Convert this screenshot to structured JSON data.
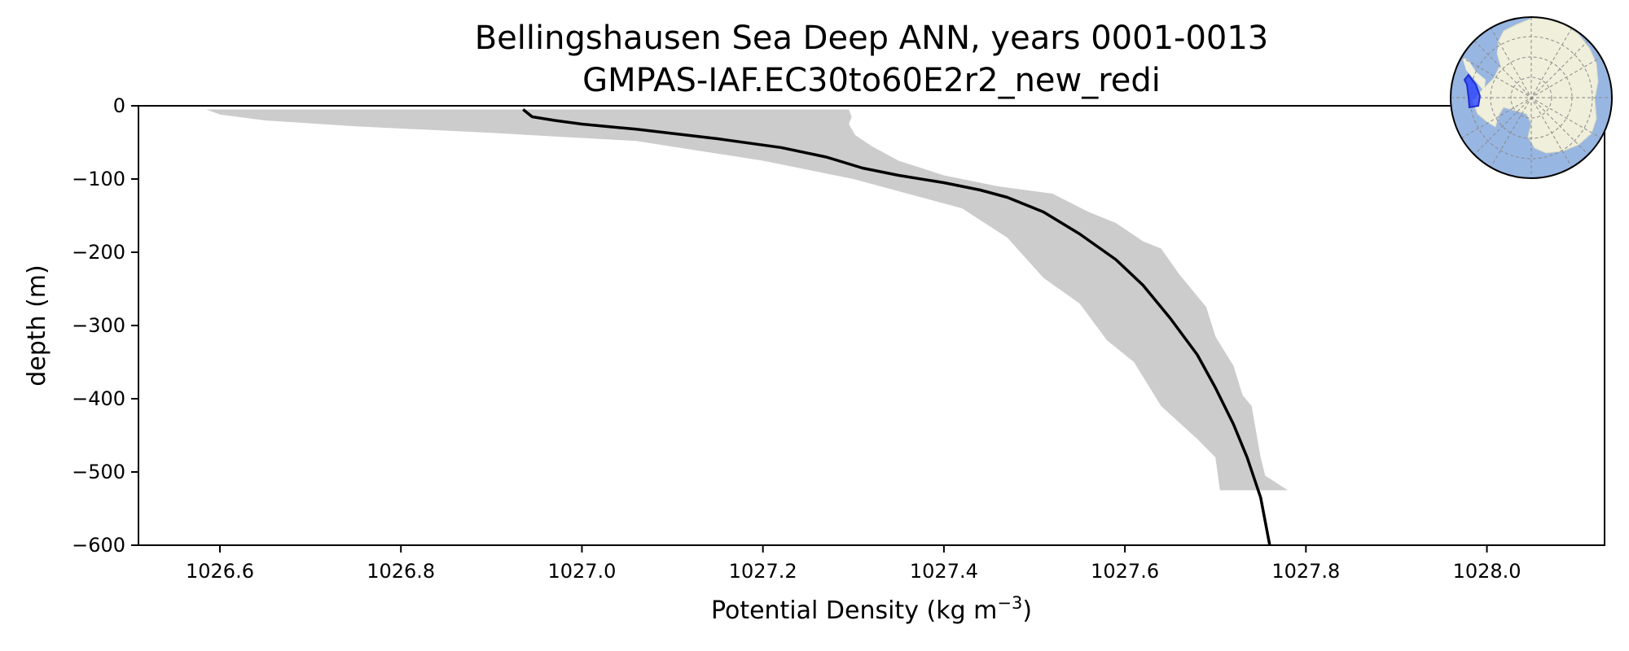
{
  "chart_data": {
    "type": "line",
    "title_line1": "Bellingshausen Sea Deep ANN, years 0001-0013",
    "title_line2": "GMPAS-IAF.EC30to60E2r2_new_redi",
    "xlabel": "Potential Density (kg m",
    "xlabel_exp": "−3",
    "xlabel_end": ")",
    "ylabel": "depth (m)",
    "xlim": [
      1026.51,
      1028.13
    ],
    "ylim": [
      -600,
      0
    ],
    "x_ticks": [
      1026.6,
      1026.8,
      1027.0,
      1027.2,
      1027.4,
      1027.6,
      1027.8,
      1028.0
    ],
    "x_tick_labels": [
      "1026.6",
      "1026.8",
      "1027.0",
      "1027.2",
      "1027.4",
      "1027.6",
      "1027.8",
      "1028.0"
    ],
    "y_ticks": [
      0,
      -100,
      -200,
      -300,
      -400,
      -500,
      -600
    ],
    "y_tick_labels": [
      "0",
      "−100",
      "−200",
      "−300",
      "−400",
      "−500",
      "−600"
    ],
    "grid": false,
    "series": [
      {
        "type": "line",
        "color": "#000000",
        "x": [
          1026.935,
          1026.945,
          1026.97,
          1027.0,
          1027.06,
          1027.15,
          1027.22,
          1027.27,
          1027.31,
          1027.35,
          1027.4,
          1027.44,
          1027.47,
          1027.51,
          1027.55,
          1027.59,
          1027.62,
          1027.65,
          1027.68,
          1027.7,
          1027.72,
          1027.735,
          1027.75,
          1027.76
        ],
        "y": [
          -5,
          -15,
          -20,
          -25,
          -32,
          -45,
          -57,
          -70,
          -85,
          -95,
          -105,
          -115,
          -125,
          -145,
          -175,
          -210,
          -245,
          -290,
          -340,
          -385,
          -435,
          -480,
          -535,
          -600
        ]
      }
    ],
    "band": {
      "color": "#cccccc",
      "upper_x": [
        1027.295,
        1027.298,
        1027.295,
        1027.302,
        1027.32,
        1027.35,
        1027.4,
        1027.46,
        1027.52,
        1027.56,
        1027.59,
        1027.62,
        1027.64,
        1027.66,
        1027.68,
        1027.69,
        1027.7,
        1027.72,
        1027.73,
        1027.74,
        1027.75,
        1027.755,
        1027.78
      ],
      "upper_y": [
        -5,
        -15,
        -25,
        -40,
        -55,
        -75,
        -95,
        -110,
        -120,
        -145,
        -160,
        -185,
        -195,
        -230,
        -260,
        -275,
        -315,
        -355,
        -395,
        -410,
        -480,
        -505,
        -525
      ],
      "lower_x": [
        1027.705,
        1027.7,
        1027.68,
        1027.64,
        1027.61,
        1027.58,
        1027.55,
        1027.51,
        1027.47,
        1027.42,
        1027.3,
        1027.2,
        1027.06,
        1026.9,
        1026.75,
        1026.65,
        1026.6,
        1026.585
      ],
      "lower_y": [
        -525,
        -480,
        -455,
        -410,
        -350,
        -320,
        -270,
        -235,
        -180,
        -140,
        -100,
        -75,
        -48,
        -37,
        -28,
        -20,
        -12,
        -5
      ]
    }
  },
  "inset_map": {
    "ocean_color": "#98b6e2",
    "land_color": "#efefdb",
    "region_color": "#1f3bff"
  }
}
